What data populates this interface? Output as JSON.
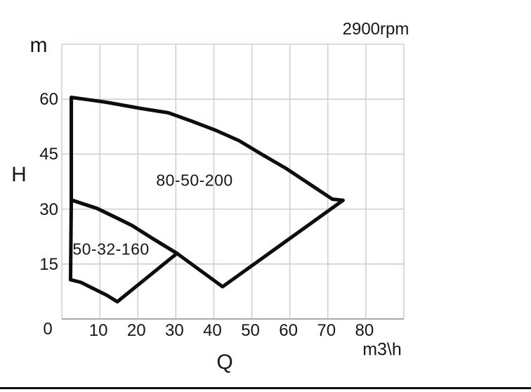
{
  "chart_data": {
    "type": "line",
    "title": "",
    "annotation": "2900rpm",
    "xlabel": "Q",
    "x_unit_label": "m3\\h",
    "ylabel": "H",
    "y_unit_label": "m",
    "xlim": [
      0,
      90
    ],
    "ylim": [
      0,
      75
    ],
    "grid": true,
    "grid_x_step": 10,
    "grid_y_step": 15,
    "x_tick_values": [
      10,
      20,
      30,
      40,
      50,
      60,
      70,
      80
    ],
    "x_tick_labels": [
      "10",
      "20",
      "30",
      "40",
      "50",
      "60",
      "70",
      "80"
    ],
    "y_tick_values": [
      60,
      45,
      30,
      15
    ],
    "y_tick_labels": [
      "60",
      "45",
      "30",
      "15"
    ],
    "origin_label": "0",
    "series": [
      {
        "name": "80-50-200",
        "closed": true,
        "points_q_h": [
          [
            2.5,
            60.5
          ],
          [
            11.5,
            59.2
          ],
          [
            20.7,
            57.5
          ],
          [
            28.0,
            56.3
          ],
          [
            34.2,
            54.0
          ],
          [
            40.5,
            51.5
          ],
          [
            46.6,
            48.7
          ],
          [
            52.7,
            44.9
          ],
          [
            59.0,
            41.1
          ],
          [
            65.1,
            36.9
          ],
          [
            71.2,
            32.7
          ],
          [
            74.0,
            32.4
          ],
          [
            42.3,
            8.8
          ],
          [
            30.3,
            17.9
          ],
          [
            24.0,
            21.9
          ],
          [
            18.5,
            25.5
          ],
          [
            14.8,
            27.4
          ],
          [
            9.2,
            30.2
          ],
          [
            2.5,
            32.5
          ]
        ]
      },
      {
        "name": "50-32-160",
        "closed": true,
        "points_q_h": [
          [
            2.5,
            32.5
          ],
          [
            9.2,
            30.2
          ],
          [
            14.8,
            27.4
          ],
          [
            18.5,
            25.5
          ],
          [
            24.0,
            21.9
          ],
          [
            30.3,
            17.9
          ],
          [
            14.6,
            4.7
          ],
          [
            11.8,
            6.5
          ],
          [
            8.1,
            8.4
          ],
          [
            5.0,
            10.0
          ],
          [
            2.3,
            10.7
          ]
        ]
      }
    ]
  },
  "colors": {
    "curve": "#0d0d0d",
    "grid_line": "#c0cad4",
    "axis_line": "#a3adb7",
    "text": "#161616",
    "background": "#ffffff",
    "bottom_rule": "#101010"
  }
}
